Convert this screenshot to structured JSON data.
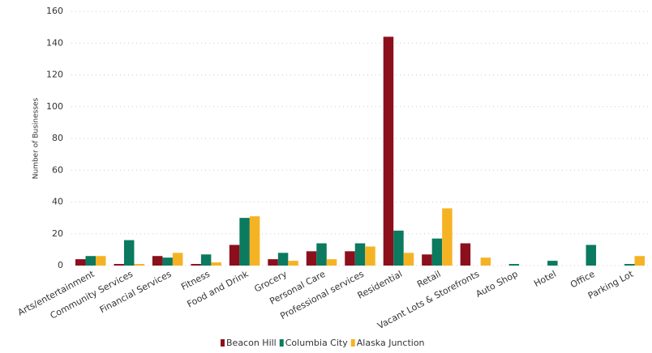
{
  "chart_data": {
    "type": "bar",
    "y_label": "Number of Businesses",
    "categories": [
      "Arts/entertainment",
      "Community Services",
      "Financial Services",
      "Fitness",
      "Food and Drink",
      "Grocery",
      "Personal Care",
      "Professional services",
      "Residential",
      "Retail",
      "Vacant Lots & Storefronts",
      "Auto Shop",
      "Hotel",
      "Office",
      "Parking Lot"
    ],
    "series": [
      {
        "name": "Beacon Hill",
        "color": "#8c0f1c",
        "values": [
          4,
          1,
          6,
          1,
          13,
          4,
          9,
          9,
          144,
          7,
          14,
          0,
          0,
          0,
          0
        ]
      },
      {
        "name": "Columbia City",
        "color": "#0b7a5f",
        "values": [
          6,
          16,
          5,
          7,
          30,
          8,
          14,
          14,
          22,
          17,
          0,
          1,
          3,
          13,
          1
        ]
      },
      {
        "name": "Alaska Junction",
        "color": "#f5b324",
        "values": [
          6,
          1,
          8,
          2,
          31,
          3,
          4,
          12,
          8,
          36,
          5,
          0,
          0,
          0,
          6
        ]
      }
    ],
    "ylim": [
      0,
      160
    ],
    "yticks": [
      0,
      20,
      40,
      60,
      80,
      100,
      120,
      140,
      160
    ],
    "grid": true,
    "legend": "bottom"
  }
}
